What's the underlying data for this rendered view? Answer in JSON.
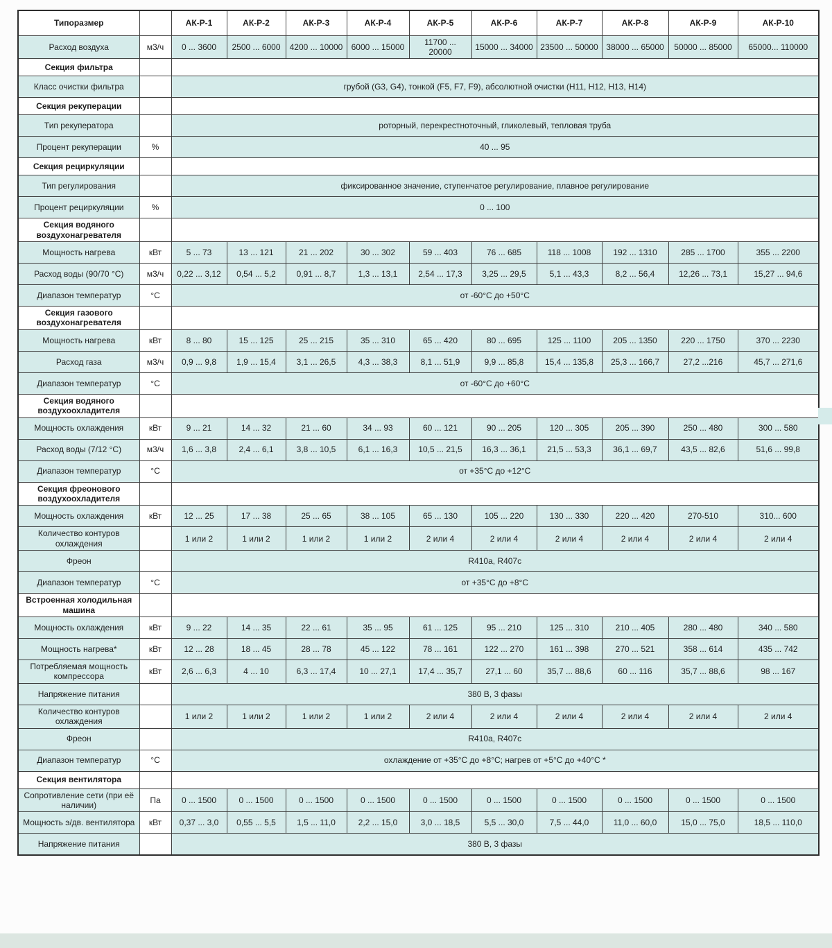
{
  "colors": {
    "cell_bg": "#d5ebea",
    "section_bg": "#ffffff",
    "border": "#3f3f3f",
    "outer_border": "#2e2e2e",
    "footer_strip": "#dce6e1",
    "page_bg": "#fcfcfc",
    "text": "#1f1f1f"
  },
  "table": {
    "header": {
      "label": "Типоразмер",
      "unit": "",
      "models": [
        "АК-Р-1",
        "АК-Р-2",
        "АК-Р-3",
        "АК-Р-4",
        "АК-Р-5",
        "АК-Р-6",
        "АК-Р-7",
        "АК-Р-8",
        "АК-Р-9",
        "АК-Р-10"
      ]
    },
    "rows": [
      {
        "type": "data",
        "label": "Расход воздуха",
        "unit": "м3/ч",
        "values": [
          "0 ... 3600",
          "2500 ... 6000",
          "4200 ... 10000",
          "6000 ... 15000",
          "11700 ... 20000",
          "15000 ... 34000",
          "23500 ... 50000",
          "38000 ... 65000",
          "50000 ... 85000",
          "65000... 110000"
        ]
      },
      {
        "type": "section",
        "label": "Секция фильтра"
      },
      {
        "type": "merged",
        "label": "Класс очистки фильтра",
        "unit": "",
        "value": "грубой (G3, G4), тонкой (F5, F7, F9), абсолютной очистки (H11, H12, H13, H14)"
      },
      {
        "type": "section",
        "label": "Секция рекуперации"
      },
      {
        "type": "merged",
        "label": "Тип рекуператора",
        "unit": "",
        "value": "роторный, перекрестноточный, гликолевый, тепловая труба"
      },
      {
        "type": "merged",
        "label": "Процент рекуперации",
        "unit": "%",
        "value": "40 ... 95"
      },
      {
        "type": "section",
        "label": "Секция рециркуляции"
      },
      {
        "type": "merged",
        "label": "Тип регулирования",
        "unit": "",
        "value": "фиксированное значение, ступенчатое регулирование, плавное регулирование"
      },
      {
        "type": "merged",
        "label": "Процент рециркуляции",
        "unit": "%",
        "value": "0 ... 100"
      },
      {
        "type": "section",
        "label": "Секция водяного воздухонагревателя"
      },
      {
        "type": "data",
        "label": "Мощность нагрева",
        "unit": "кВт",
        "values": [
          "5 ... 73",
          "13 ... 121",
          "21 ... 202",
          "30 ... 302",
          "59 ... 403",
          "76 ... 685",
          "118 ... 1008",
          "192 ... 1310",
          "285 ... 1700",
          "355 ... 2200"
        ]
      },
      {
        "type": "data",
        "label": "Расход воды (90/70 °С)",
        "unit": "м3/ч",
        "values": [
          "0,22 ... 3,12",
          "0,54 ... 5,2",
          "0,91 ... 8,7",
          "1,3 ... 13,1",
          "2,54 ... 17,3",
          "3,25 ... 29,5",
          "5,1 ... 43,3",
          "8,2 ... 56,4",
          "12,26 ... 73,1",
          "15,27 ... 94,6"
        ]
      },
      {
        "type": "merged",
        "label": "Диапазон температур",
        "unit": "°С",
        "value": "от -60°С до +50°С"
      },
      {
        "type": "section",
        "label": "Секция газового воздухонагревателя"
      },
      {
        "type": "data",
        "label": "Мощность нагрева",
        "unit": "кВт",
        "values": [
          "8 ... 80",
          "15 ... 125",
          "25 ... 215",
          "35 ... 310",
          "65 ... 420",
          "80 ... 695",
          "125 ... 1100",
          "205 ... 1350",
          "220 ... 1750",
          "370 ... 2230"
        ]
      },
      {
        "type": "data",
        "label": "Расход газа",
        "unit": "м3/ч",
        "values": [
          "0,9 ... 9,8",
          "1,9 ... 15,4",
          "3,1 ... 26,5",
          "4,3 ... 38,3",
          "8,1 ... 51,9",
          "9,9 ... 85,8",
          "15,4 ... 135,8",
          "25,3 ... 166,7",
          "27,2 ...216",
          "45,7 ... 271,6"
        ]
      },
      {
        "type": "merged",
        "label": "Диапазон температур",
        "unit": "°С",
        "value": "от -60°С до +60°С"
      },
      {
        "type": "section",
        "label": "Секция водяного воздухоохладителя"
      },
      {
        "type": "data",
        "label": "Мощность охлаждения",
        "unit": "кВт",
        "values": [
          "9 ... 21",
          "14 ... 32",
          "21 ... 60",
          "34 ... 93",
          "60 ... 121",
          "90 ... 205",
          "120 ... 305",
          "205 ... 390",
          "250 ... 480",
          "300 ... 580"
        ]
      },
      {
        "type": "data",
        "label": "Расход воды (7/12 °С)",
        "unit": "м3/ч",
        "values": [
          "1,6 ... 3,8",
          "2,4 ... 6,1",
          "3,8 ... 10,5",
          "6,1 ... 16,3",
          "10,5 ... 21,5",
          "16,3 ... 36,1",
          "21,5 ... 53,3",
          "36,1 ... 69,7",
          "43,5 ... 82,6",
          "51,6 ... 99,8"
        ]
      },
      {
        "type": "merged",
        "label": "Диапазон температур",
        "unit": "°С",
        "value": "от +35°С до +12°С"
      },
      {
        "type": "section",
        "label": "Секция фреонового воздухоохладителя"
      },
      {
        "type": "data",
        "label": "Мощность охлаждения",
        "unit": "кВт",
        "values": [
          "12 ... 25",
          "17 ... 38",
          "25 ... 65",
          "38 ... 105",
          "65 ... 130",
          "105 ... 220",
          "130 ... 330",
          "220 ... 420",
          "270-510",
          "310... 600"
        ]
      },
      {
        "type": "data",
        "label": "Количество контуров охлаждения",
        "unit": "",
        "values": [
          "1 или 2",
          "1 или 2",
          "1 или 2",
          "1 или 2",
          "2 или 4",
          "2 или 4",
          "2 или 4",
          "2 или 4",
          "2 или 4",
          "2 или 4"
        ]
      },
      {
        "type": "merged",
        "label": "Фреон",
        "unit": "",
        "value": "R410a, R407c"
      },
      {
        "type": "merged",
        "label": "Диапазон температур",
        "unit": "°С",
        "value": "от +35°С до +8°С"
      },
      {
        "type": "section",
        "label": "Встроенная холодильная машина"
      },
      {
        "type": "data",
        "label": "Мощность охлаждения",
        "unit": "кВт",
        "values": [
          "9 ... 22",
          "14 ... 35",
          "22 ... 61",
          "35 ... 95",
          "61 ... 125",
          "95 ... 210",
          "125 ... 310",
          "210 ... 405",
          "280 ... 480",
          "340 ... 580"
        ]
      },
      {
        "type": "data",
        "label": "Мощность нагрева*",
        "unit": "кВт",
        "values": [
          "12 ... 28",
          "18 ... 45",
          "28 ... 78",
          "45 ... 122",
          "78 ... 161",
          "122 ... 270",
          "161 ... 398",
          "270 ... 521",
          "358 ... 614",
          "435 ... 742"
        ]
      },
      {
        "type": "data",
        "label": "Потребляемая мощность компрессора",
        "unit": "кВт",
        "values": [
          "2,6 ... 6,3",
          "4 ... 10",
          "6,3 ... 17,4",
          "10 ... 27,1",
          "17,4 ... 35,7",
          "27,1 ... 60",
          "35,7 ... 88,6",
          "60 ... 116",
          "35,7 ... 88,6",
          "98 ... 167"
        ]
      },
      {
        "type": "merged",
        "label": "Напряжение питания",
        "unit": "",
        "value": "380 В, 3 фазы"
      },
      {
        "type": "data",
        "label": "Количество контуров охлаждения",
        "unit": "",
        "values": [
          "1 или 2",
          "1 или 2",
          "1 или 2",
          "1 или 2",
          "2 или 4",
          "2 или 4",
          "2 или 4",
          "2 или 4",
          "2 или 4",
          "2 или 4"
        ]
      },
      {
        "type": "merged",
        "label": "Фреон",
        "unit": "",
        "value": "R410a, R407c"
      },
      {
        "type": "merged",
        "label": "Диапазон температур",
        "unit": "°С",
        "value": "охлаждение от +35°С до +8°С; нагрев от +5°С до +40°С *"
      },
      {
        "type": "section",
        "label": "Секция вентилятора"
      },
      {
        "type": "data",
        "label": "Сопротивление сети (при её наличии)",
        "unit": "Па",
        "values": [
          "0 ... 1500",
          "0 ... 1500",
          "0 ... 1500",
          "0 ... 1500",
          "0 ... 1500",
          "0 ... 1500",
          "0 ... 1500",
          "0 ... 1500",
          "0 ... 1500",
          "0 ... 1500"
        ]
      },
      {
        "type": "data",
        "label": "Мощность э/дв. вентилятора",
        "unit": "кВт",
        "values": [
          "0,37 ... 3,0",
          "0,55 ... 5,5",
          "1,5 ... 11,0",
          "2,2 ... 15,0",
          "3,0 ... 18,5",
          "5,5 ... 30,0",
          "7,5 ... 44,0",
          "11,0 ... 60,0",
          "15,0 ... 75,0",
          "18,5 ... 110,0"
        ]
      },
      {
        "type": "merged",
        "label": "Напряжение питания",
        "unit": "",
        "value": "380 В, 3 фазы"
      }
    ]
  }
}
